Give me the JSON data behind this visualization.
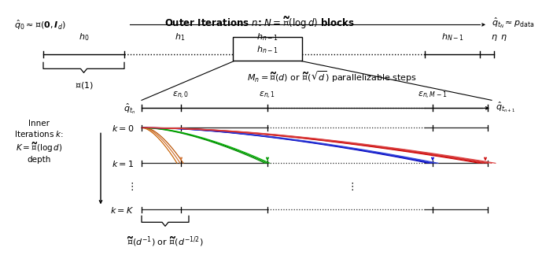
{
  "bg_color": "#ffffff",
  "title_text": "Outer Iterations $n$: $N = \\widetilde{\\mathcal{O}}(\\log d)$ blocks",
  "top_left_label": "$\\hat{q}_0 \\approx \\mathcal{N}(\\mathbf{0}, \\boldsymbol{I}_d)$",
  "top_right_label": "$\\hat{q}_{t_N} \\approx p_{\\mathrm{data}}$",
  "brace_label": "$\\mathcal{O}(1)$",
  "inner_title": "$M_n = \\widetilde{\\mathcal{O}}(d)$ or $\\widetilde{\\mathcal{O}}(\\sqrt{d})$ parallelizable steps",
  "inner_left_label": "$\\hat{q}_{t_n}$",
  "inner_right_label": "$\\hat{q}_{t_{n+1}}$",
  "epsilon_labels": [
    "$\\epsilon_{n,0}$",
    "$\\epsilon_{n,1}$",
    "$\\epsilon_{n,M-1}$"
  ],
  "inner_left_text": "Inner\nIterations $k$:\n$K = \\widetilde{\\mathcal{O}}(\\log d)$\ndepth",
  "bottom_brace_label": "$\\widetilde{\\mathcal{O}}(d^{-1})$ or $\\widetilde{\\mathcal{O}}(d^{-1/2})$",
  "h_texts": [
    "$h_0$",
    "$h_1$",
    "$h_{n-1}$",
    "$h_{N-1}$",
    "$\\eta$"
  ],
  "k_labels": [
    "$k=0$",
    "$k=1$",
    "$k=K$"
  ],
  "orange_colors": [
    "#c86000",
    "#d07030",
    "#b85000"
  ],
  "green_colors": [
    "#008800",
    "#009900",
    "#00aa00"
  ],
  "blue_colors": [
    "#0000bb",
    "#1111cc",
    "#2233cc",
    "#3344dd"
  ],
  "red_colors": [
    "#cc0000",
    "#cc1111",
    "#dd2222",
    "#cc3333",
    "#dd4444"
  ]
}
